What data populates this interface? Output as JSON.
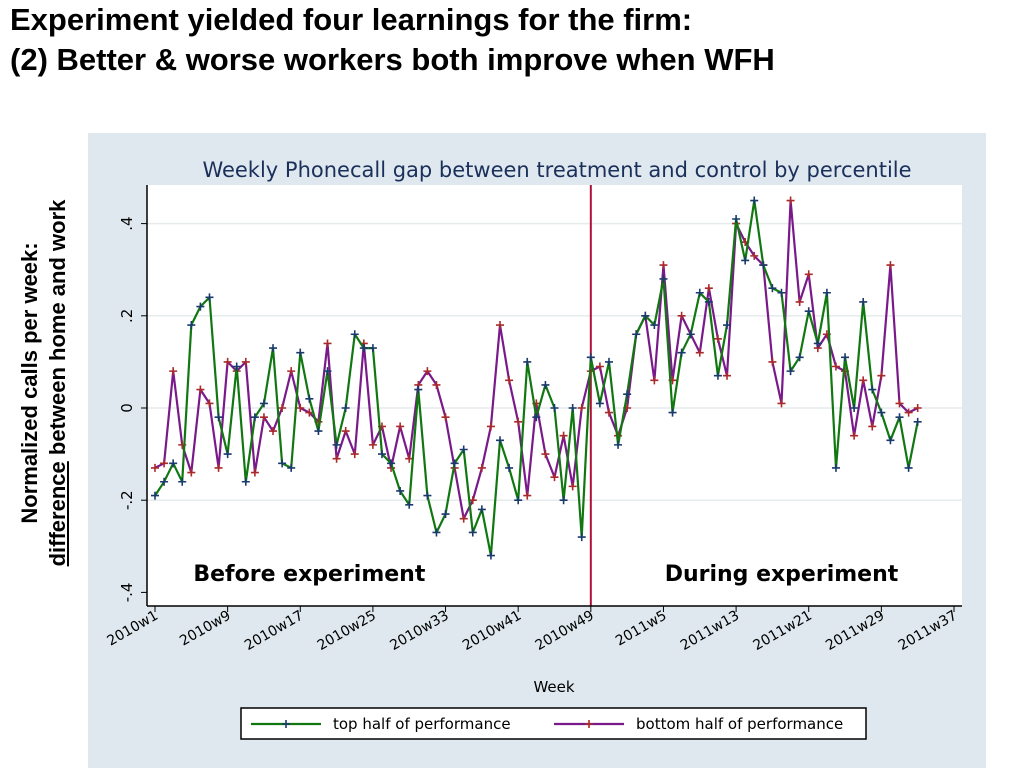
{
  "slide": {
    "title_line1": "Experiment yielded four learnings for the firm:",
    "title_line2": "(2) Better & worse workers both improve when WFH",
    "ylabel_line1": "Normalized calls per week:",
    "ylabel_line2_underlined": "difference",
    "ylabel_line2_rest": " between home and work"
  },
  "colors": {
    "panel_bg": "#dfe8ee",
    "plot_bg": "#ffffff",
    "title_color": "#1a2f5a",
    "top_series": "#117711",
    "top_marker": "#1a3a6e",
    "bottom_series": "#7a1a8a",
    "bottom_marker": "#aa2a2a",
    "vline": "#b0103a"
  },
  "chart_data": {
    "type": "line",
    "title": "Weekly Phonecall gap between treatment and control by percentile",
    "xlabel": "Week",
    "ylabel": "",
    "ylim": [
      -0.4,
      0.45
    ],
    "yticks": [
      {
        "value": -0.4,
        "label": "-.4"
      },
      {
        "value": -0.2,
        "label": "-.2"
      },
      {
        "value": 0,
        "label": "0"
      },
      {
        "value": 0.2,
        "label": ".2"
      },
      {
        "value": 0.4,
        "label": ".4"
      }
    ],
    "xticks": [
      {
        "index": 0,
        "label": "2010w1"
      },
      {
        "index": 8,
        "label": "2010w9"
      },
      {
        "index": 16,
        "label": "2010w17"
      },
      {
        "index": 24,
        "label": "2010w25"
      },
      {
        "index": 32,
        "label": "2010w33"
      },
      {
        "index": 40,
        "label": "2010w41"
      },
      {
        "index": 48,
        "label": "2010w49"
      },
      {
        "index": 56,
        "label": "2011w5"
      },
      {
        "index": 64,
        "label": "2011w13"
      },
      {
        "index": 72,
        "label": "2011w21"
      },
      {
        "index": 80,
        "label": "2011w29"
      },
      {
        "index": 88,
        "label": "2011w37"
      }
    ],
    "x_index_range": [
      0,
      88
    ],
    "experiment_start_index": 48,
    "annotations": [
      {
        "text": "Before experiment",
        "x_index": 17,
        "y": -0.36
      },
      {
        "text": "During experiment",
        "x_index": 69,
        "y": -0.36
      }
    ],
    "legend_position": "bottom-center",
    "series": [
      {
        "name": "top half of performance",
        "values": [
          -0.19,
          -0.16,
          -0.12,
          -0.16,
          0.18,
          0.22,
          0.24,
          -0.02,
          -0.1,
          0.09,
          -0.16,
          -0.02,
          0.01,
          0.13,
          -0.12,
          -0.13,
          0.12,
          0.02,
          -0.05,
          0.08,
          -0.08,
          0.0,
          0.16,
          0.13,
          0.13,
          -0.1,
          -0.12,
          -0.18,
          -0.21,
          0.04,
          -0.19,
          -0.27,
          -0.23,
          -0.12,
          -0.09,
          -0.27,
          -0.22,
          -0.32,
          -0.07,
          -0.13,
          -0.2,
          0.1,
          -0.02,
          0.05,
          0.0,
          -0.2,
          0.0,
          -0.28,
          0.11,
          0.01,
          0.1,
          -0.08,
          0.03,
          0.16,
          0.2,
          0.18,
          0.28,
          -0.01,
          0.12,
          0.16,
          0.25,
          0.23,
          0.07,
          0.18,
          0.41,
          0.32,
          0.45,
          0.31,
          0.26,
          0.25,
          0.08,
          0.11,
          0.21,
          0.14,
          0.25,
          -0.13,
          0.11,
          0.0,
          0.23,
          0.04,
          -0.01,
          -0.07,
          -0.02,
          -0.13,
          -0.03
        ]
      },
      {
        "name": "bottom half of performance",
        "values": [
          -0.13,
          -0.12,
          0.08,
          -0.08,
          -0.14,
          0.04,
          0.01,
          -0.13,
          0.1,
          0.08,
          0.1,
          -0.14,
          -0.02,
          -0.05,
          0.0,
          0.08,
          0.0,
          -0.01,
          -0.03,
          0.14,
          -0.11,
          -0.05,
          -0.1,
          0.14,
          -0.08,
          -0.04,
          -0.13,
          -0.04,
          -0.11,
          0.05,
          0.08,
          0.05,
          -0.02,
          -0.13,
          -0.24,
          -0.2,
          -0.13,
          -0.04,
          0.18,
          0.06,
          -0.03,
          -0.19,
          0.01,
          -0.1,
          -0.15,
          -0.06,
          -0.17,
          0.0,
          0.08,
          0.09,
          -0.01,
          -0.06,
          0.0,
          0.16,
          0.2,
          0.06,
          0.31,
          0.06,
          0.2,
          0.16,
          0.12,
          0.26,
          0.15,
          0.07,
          0.4,
          0.36,
          0.33,
          0.31,
          0.1,
          0.01,
          0.45,
          0.23,
          0.29,
          0.13,
          0.16,
          0.09,
          0.08,
          -0.06,
          0.06,
          -0.04,
          0.07,
          0.31,
          0.01,
          -0.01,
          0.0
        ]
      }
    ]
  }
}
